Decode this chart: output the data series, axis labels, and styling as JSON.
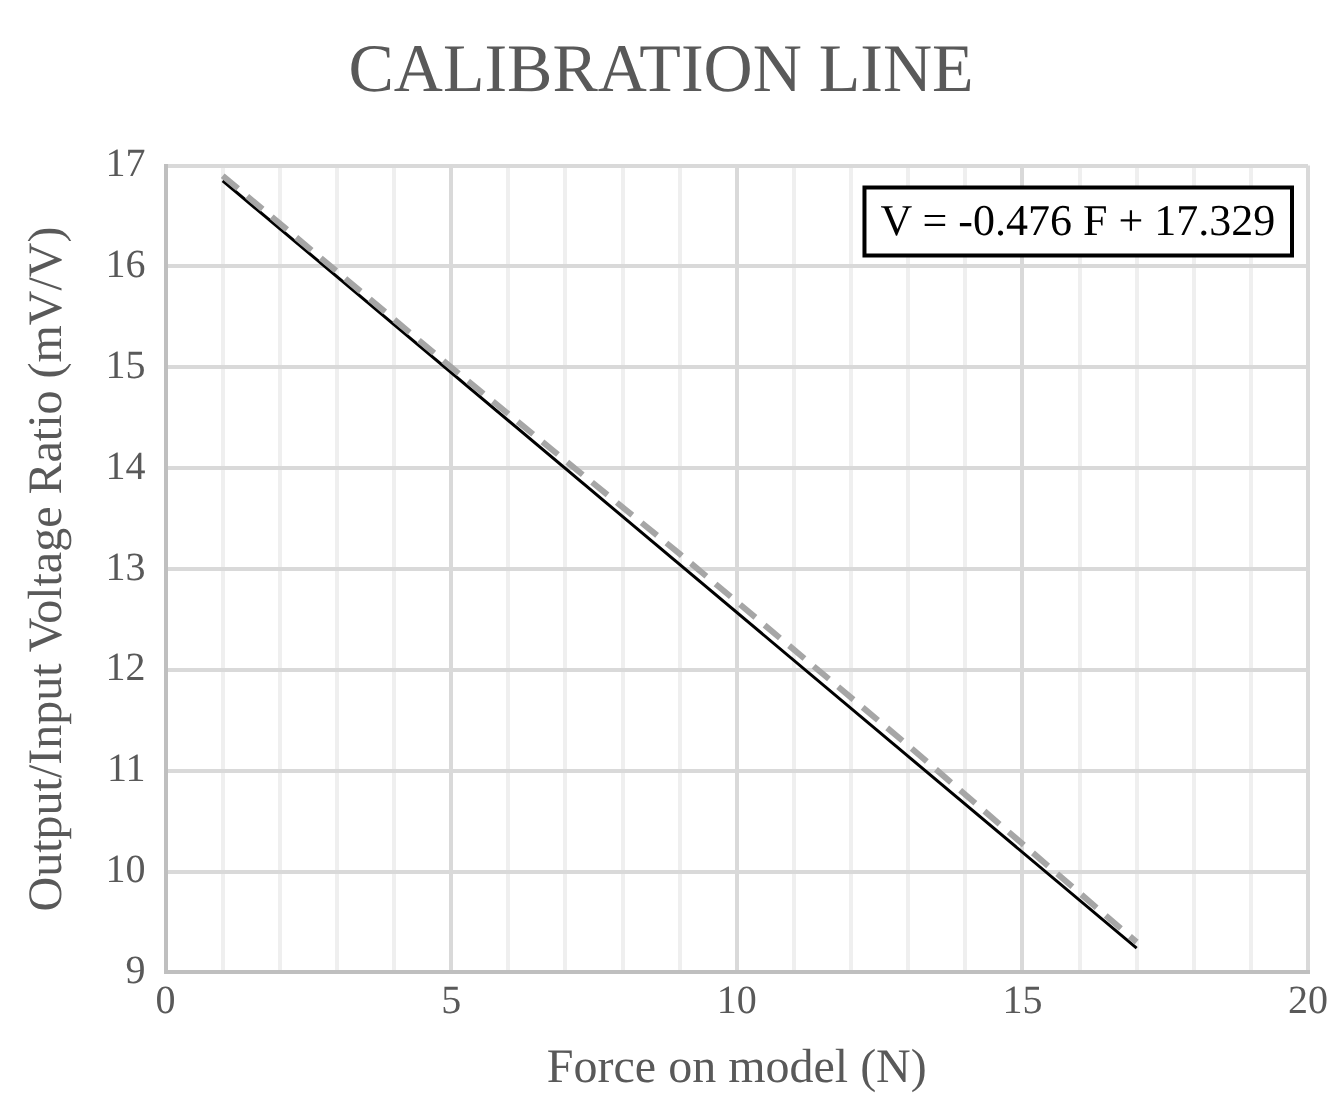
{
  "chart_data": {
    "type": "line",
    "title": "CALIBRATION LINE",
    "xlabel": "Force on model (N)",
    "ylabel": "Output/Input Voltage Ratio (mV/V)",
    "xlim": [
      0,
      20
    ],
    "ylim": [
      9,
      17
    ],
    "xticks": [
      0,
      {
        "value": 1,
        "label": null
      },
      {
        "value": 2,
        "label": null
      },
      {
        "value": 3,
        "label": null
      },
      {
        "value": 4,
        "label": null
      },
      5,
      {
        "value": 6,
        "label": null
      },
      {
        "value": 7,
        "label": null
      },
      {
        "value": 8,
        "label": null
      },
      {
        "value": 9,
        "label": null
      },
      10,
      {
        "value": 11,
        "label": null
      },
      {
        "value": 12,
        "label": null
      },
      {
        "value": 13,
        "label": null
      },
      {
        "value": 14,
        "label": null
      },
      15,
      {
        "value": 16,
        "label": null
      },
      {
        "value": 17,
        "label": null
      },
      {
        "value": 18,
        "label": null
      },
      {
        "value": 19,
        "label": null
      },
      20
    ],
    "yticks": [
      9,
      10,
      11,
      12,
      13,
      14,
      15,
      16,
      17
    ],
    "grid": true,
    "legend": false,
    "marker": "none",
    "series": [
      {
        "color": "#a6a6a6",
        "line_style": "dashed",
        "x": [
          1,
          5,
          9,
          13,
          17
        ],
        "values": [
          16.9,
          15.0,
          13.15,
          11.25,
          9.3
        ]
      },
      {
        "color": "#000000",
        "line_style": "solid",
        "x": [
          1,
          17
        ],
        "values": [
          16.85,
          9.24
        ]
      }
    ],
    "annotations": [
      "V = -0.476 F + 17.329"
    ]
  }
}
